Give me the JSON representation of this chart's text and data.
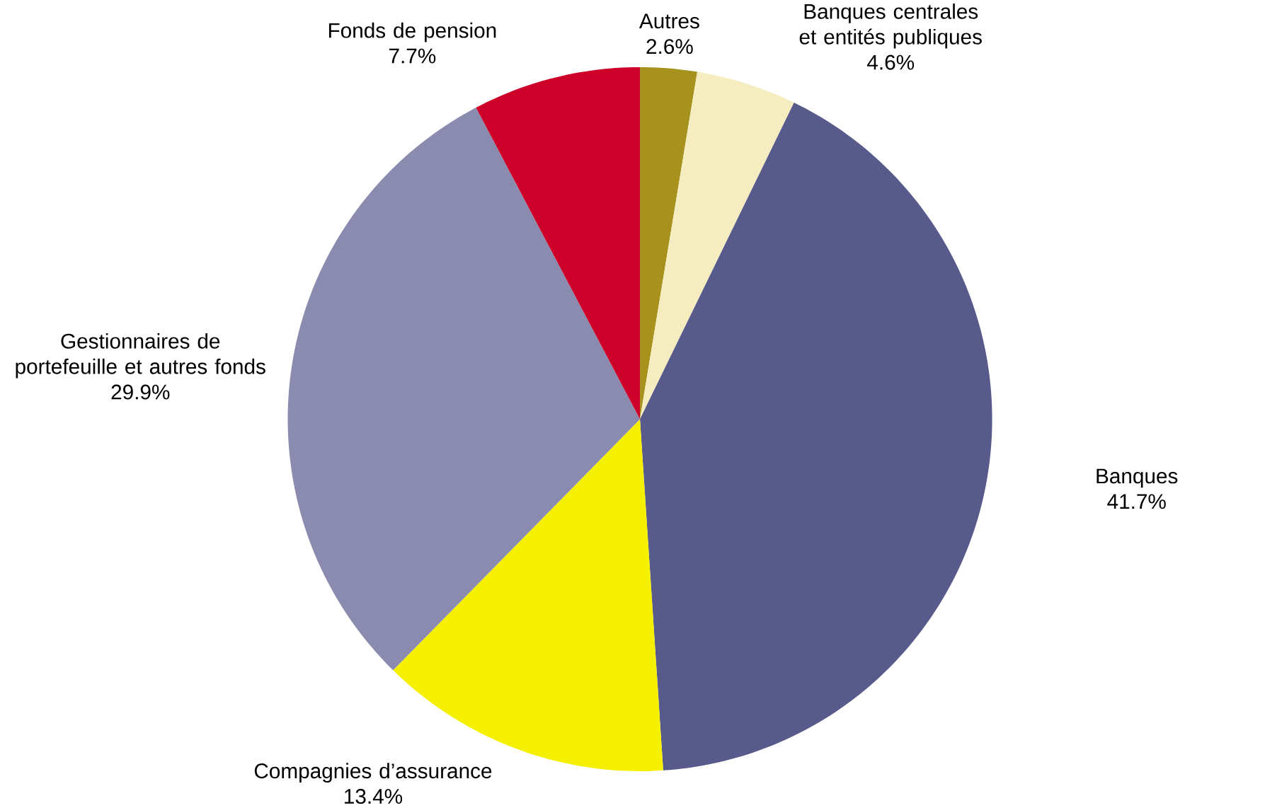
{
  "chart_data": {
    "type": "pie",
    "categories": [
      "Autres",
      "Banques centrales et entités publiques",
      "Banques",
      "Compagnies d’assurance",
      "Gestionnaires de portefeuille et autres fonds",
      "Fonds de pension"
    ],
    "values": [
      2.6,
      4.6,
      41.7,
      13.4,
      29.9,
      7.7
    ],
    "value_labels": [
      "2.6%",
      "4.6%",
      "41.7%",
      "13.4%",
      "29.9%",
      "7.7%"
    ],
    "colors": [
      "#a8921e",
      "#f5edc0",
      "#575a8a",
      "#f5f000",
      "#8a8bae",
      "#cc0028"
    ]
  }
}
